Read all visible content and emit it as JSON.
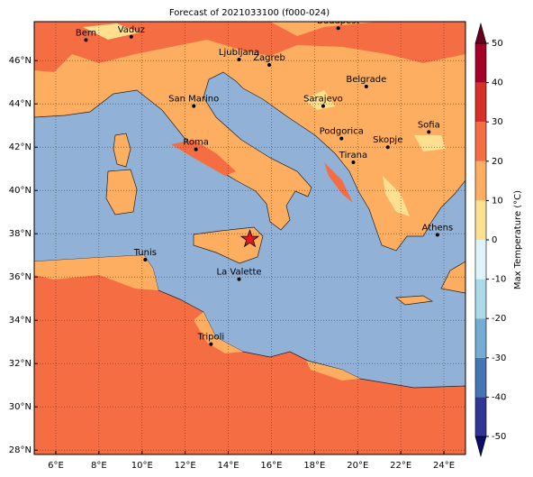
{
  "map": {
    "title": "Forecast of 2021033100 (f000-024)",
    "xlim": [
      5,
      25
    ],
    "ylim": [
      27.8,
      47.8
    ],
    "xticks": [
      {
        "value": 6,
        "label": "6°E"
      },
      {
        "value": 8,
        "label": "8°E"
      },
      {
        "value": 10,
        "label": "10°E"
      },
      {
        "value": 12,
        "label": "12°E"
      },
      {
        "value": 14,
        "label": "14°E"
      },
      {
        "value": 16,
        "label": "16°E"
      },
      {
        "value": 18,
        "label": "18°E"
      },
      {
        "value": 20,
        "label": "20°E"
      },
      {
        "value": 22,
        "label": "22°E"
      },
      {
        "value": 24,
        "label": "24°E"
      }
    ],
    "yticks": [
      {
        "value": 28,
        "label": "28°N"
      },
      {
        "value": 30,
        "label": "30°N"
      },
      {
        "value": 32,
        "label": "32°N"
      },
      {
        "value": 34,
        "label": "34°N"
      },
      {
        "value": 36,
        "label": "36°N"
      },
      {
        "value": 38,
        "label": "38°N"
      },
      {
        "value": 40,
        "label": "40°N"
      },
      {
        "value": 42,
        "label": "42°N"
      },
      {
        "value": 44,
        "label": "44°N"
      },
      {
        "value": 46,
        "label": "46°N"
      }
    ],
    "grid": true,
    "cities": [
      {
        "name": "Bern",
        "lon": 7.4,
        "lat": 46.95
      },
      {
        "name": "Vaduz",
        "lon": 9.5,
        "lat": 47.1
      },
      {
        "name": "Budapest",
        "lon": 19.1,
        "lat": 47.5
      },
      {
        "name": "Ljubljana",
        "lon": 14.5,
        "lat": 46.05
      },
      {
        "name": "Zagreb",
        "lon": 15.9,
        "lat": 45.8
      },
      {
        "name": "Belgrade",
        "lon": 20.4,
        "lat": 44.8
      },
      {
        "name": "San Marino",
        "lon": 12.4,
        "lat": 43.9
      },
      {
        "name": "Sarajevo",
        "lon": 18.4,
        "lat": 43.9
      },
      {
        "name": "Sofia",
        "lon": 23.3,
        "lat": 42.7
      },
      {
        "name": "Podgorica",
        "lon": 19.25,
        "lat": 42.4
      },
      {
        "name": "Skopje",
        "lon": 21.4,
        "lat": 42.0
      },
      {
        "name": "Roma",
        "lon": 12.5,
        "lat": 41.9
      },
      {
        "name": "Tirana",
        "lon": 19.8,
        "lat": 41.3
      },
      {
        "name": "Athens",
        "lon": 23.7,
        "lat": 37.95
      },
      {
        "name": "Tunis",
        "lon": 10.15,
        "lat": 36.8
      },
      {
        "name": "La Valette",
        "lon": 14.5,
        "lat": 35.9
      },
      {
        "name": "Tripoli",
        "lon": 13.2,
        "lat": 32.9
      }
    ],
    "marker": {
      "lon": 15.0,
      "lat": 37.75,
      "color": "#e31a1c"
    },
    "colorbar": {
      "label": "Max Temperature (°C)",
      "ticks": [
        -50,
        -40,
        -30,
        -20,
        -10,
        0,
        10,
        20,
        30,
        40,
        50
      ],
      "colors": [
        "#313695",
        "#4575b4",
        "#74add1",
        "#abd9e9",
        "#e0f3f8",
        "#fee090",
        "#fdae61",
        "#f46d43",
        "#d73027",
        "#a50026"
      ],
      "under_color": "#0b0b6b",
      "over_color": "#67001f"
    }
  }
}
